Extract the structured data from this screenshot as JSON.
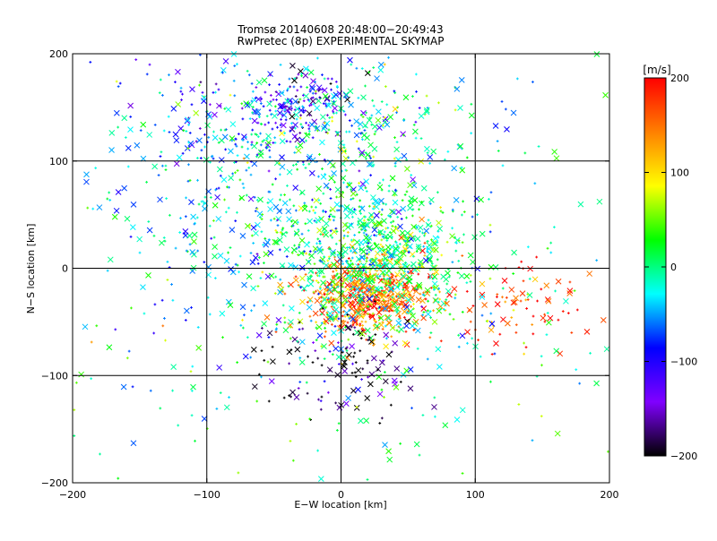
{
  "chart_data": {
    "type": "scatter",
    "title": "Tromsø 20140608 20:48:00−20:49:43",
    "subtitle": "RwPretec (8p) EXPERIMENTAL SKYMAP",
    "xlabel": "E−W location [km]",
    "ylabel": "N−S location [km]",
    "xlim": [
      -200,
      200
    ],
    "ylim": [
      -200,
      200
    ],
    "x_ticks": [
      -200,
      -100,
      0,
      100,
      200
    ],
    "y_ticks": [
      -200,
      -100,
      0,
      100,
      200
    ],
    "x_tick_labels": [
      "−200",
      "−100",
      "0",
      "100",
      "200"
    ],
    "y_tick_labels": [
      "−200",
      "−100",
      "0",
      "100",
      "200"
    ],
    "grid": true,
    "markers": [
      "x",
      "+"
    ],
    "colorbar": {
      "label": "[m/s]",
      "range": [
        -200,
        200
      ],
      "ticks": [
        200,
        100,
        0,
        -100,
        -200
      ],
      "tick_labels": [
        "200",
        "100",
        "0",
        "−100",
        "−200"
      ],
      "colormap": [
        "#000000",
        "#8000ff",
        "#0000ff",
        "#00ffff",
        "#00ff00",
        "#ffff00",
        "#ff8000",
        "#ff0000"
      ]
    },
    "clusters": [
      {
        "center_x": 20,
        "center_y": -25,
        "spread_x": 25,
        "spread_y": 18,
        "count": 520,
        "mean_velocity": 150
      },
      {
        "center_x": 25,
        "center_y": 10,
        "spread_x": 35,
        "spread_y": 35,
        "count": 700,
        "mean_velocity": 10
      },
      {
        "center_x": -30,
        "center_y": 150,
        "spread_x": 20,
        "spread_y": 15,
        "count": 160,
        "mean_velocity": -120
      },
      {
        "center_x": 0,
        "center_y": 130,
        "spread_x": 50,
        "spread_y": 30,
        "count": 220,
        "mean_velocity": -20
      },
      {
        "center_x": -110,
        "center_y": 150,
        "spread_x": 35,
        "spread_y": 35,
        "count": 110,
        "mean_velocity": -80
      },
      {
        "center_x": 0,
        "center_y": -90,
        "spread_x": 30,
        "spread_y": 25,
        "count": 120,
        "mean_velocity": -190
      },
      {
        "center_x": 130,
        "center_y": -40,
        "spread_x": 25,
        "spread_y": 20,
        "count": 80,
        "mean_velocity": 170
      },
      {
        "center_x": -60,
        "center_y": 50,
        "spread_x": 60,
        "spread_y": 60,
        "count": 350,
        "mean_velocity": -30
      },
      {
        "center_x": 0,
        "center_y": 0,
        "spread_x": 130,
        "spread_y": 130,
        "count": 450,
        "mean_velocity": 0
      }
    ]
  }
}
